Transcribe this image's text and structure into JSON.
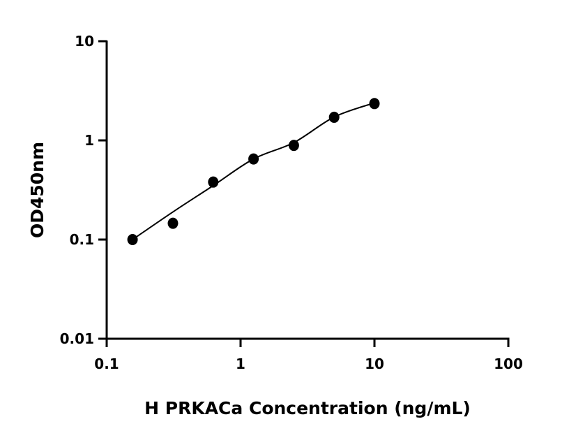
{
  "chart_data": {
    "type": "scatter",
    "title": "",
    "xlabel": "H PRKACa Concentration (ng/mL)",
    "ylabel": "OD450nm",
    "x_scale": "log",
    "y_scale": "log",
    "xlim": [
      0.1,
      100
    ],
    "ylim": [
      0.01,
      10
    ],
    "x_ticks": [
      0.1,
      1,
      10,
      100
    ],
    "x_tick_labels": [
      "0.1",
      "1",
      "10",
      "100"
    ],
    "y_ticks": [
      0.01,
      0.1,
      1,
      10
    ],
    "y_tick_labels": [
      "0.01",
      "0.1",
      "1",
      "10"
    ],
    "grid": false,
    "legend": "none",
    "series": [
      {
        "type": "scatter",
        "x": [
          0.156,
          0.3125,
          0.625,
          1.25,
          2.5,
          5,
          10
        ],
        "y": [
          0.1,
          0.146,
          0.38,
          0.65,
          0.89,
          1.71,
          2.35
        ],
        "color": "#000000"
      },
      {
        "type": "line",
        "x": [
          0.156,
          0.3125,
          0.625,
          1.25,
          2.5,
          5,
          10
        ],
        "y": [
          0.1,
          0.19,
          0.35,
          0.65,
          0.95,
          1.72,
          2.39
        ],
        "color": "#000000"
      }
    ]
  }
}
